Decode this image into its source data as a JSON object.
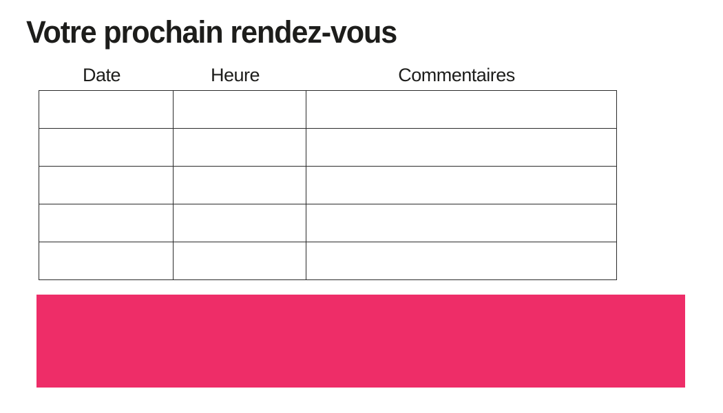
{
  "title": "Votre prochain rendez-vous",
  "table": {
    "headers": [
      "Date",
      "Heure",
      "Commentaires"
    ],
    "row_count": 5,
    "rows": [
      [
        "",
        "",
        ""
      ],
      [
        "",
        "",
        ""
      ],
      [
        "",
        "",
        ""
      ],
      [
        "",
        "",
        ""
      ],
      [
        "",
        "",
        ""
      ]
    ]
  },
  "banner": {
    "color": "#ee2d68"
  },
  "colors": {
    "text": "#1d1d1b",
    "table_border": "#2a2a2a",
    "background": "#ffffff"
  }
}
